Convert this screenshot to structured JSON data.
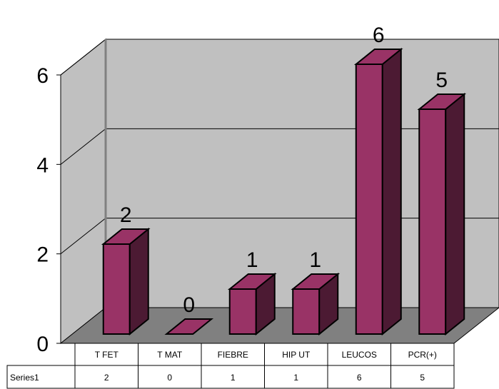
{
  "chart_data": {
    "type": "bar",
    "categories": [
      "T FET",
      "T MAT",
      "FIEBRE",
      "HIP UT",
      "LEUCOS",
      "PCR(+)"
    ],
    "series": [
      {
        "name": "Series1",
        "values": [
          2,
          0,
          1,
          1,
          6,
          5
        ]
      }
    ],
    "data_labels": [
      "2",
      "0",
      "1",
      "1",
      "6",
      "5"
    ],
    "yticks": [
      "0",
      "2",
      "4",
      "6"
    ],
    "ylim": [
      0,
      6
    ],
    "grid": true,
    "legend": "none",
    "data_table": true,
    "style": "3d-column",
    "colors": {
      "bar_front": "#993366",
      "bar_top": "#993366",
      "bar_side": "#4c1a33",
      "wall": "#c0c0c0",
      "floor": "#808080"
    }
  }
}
